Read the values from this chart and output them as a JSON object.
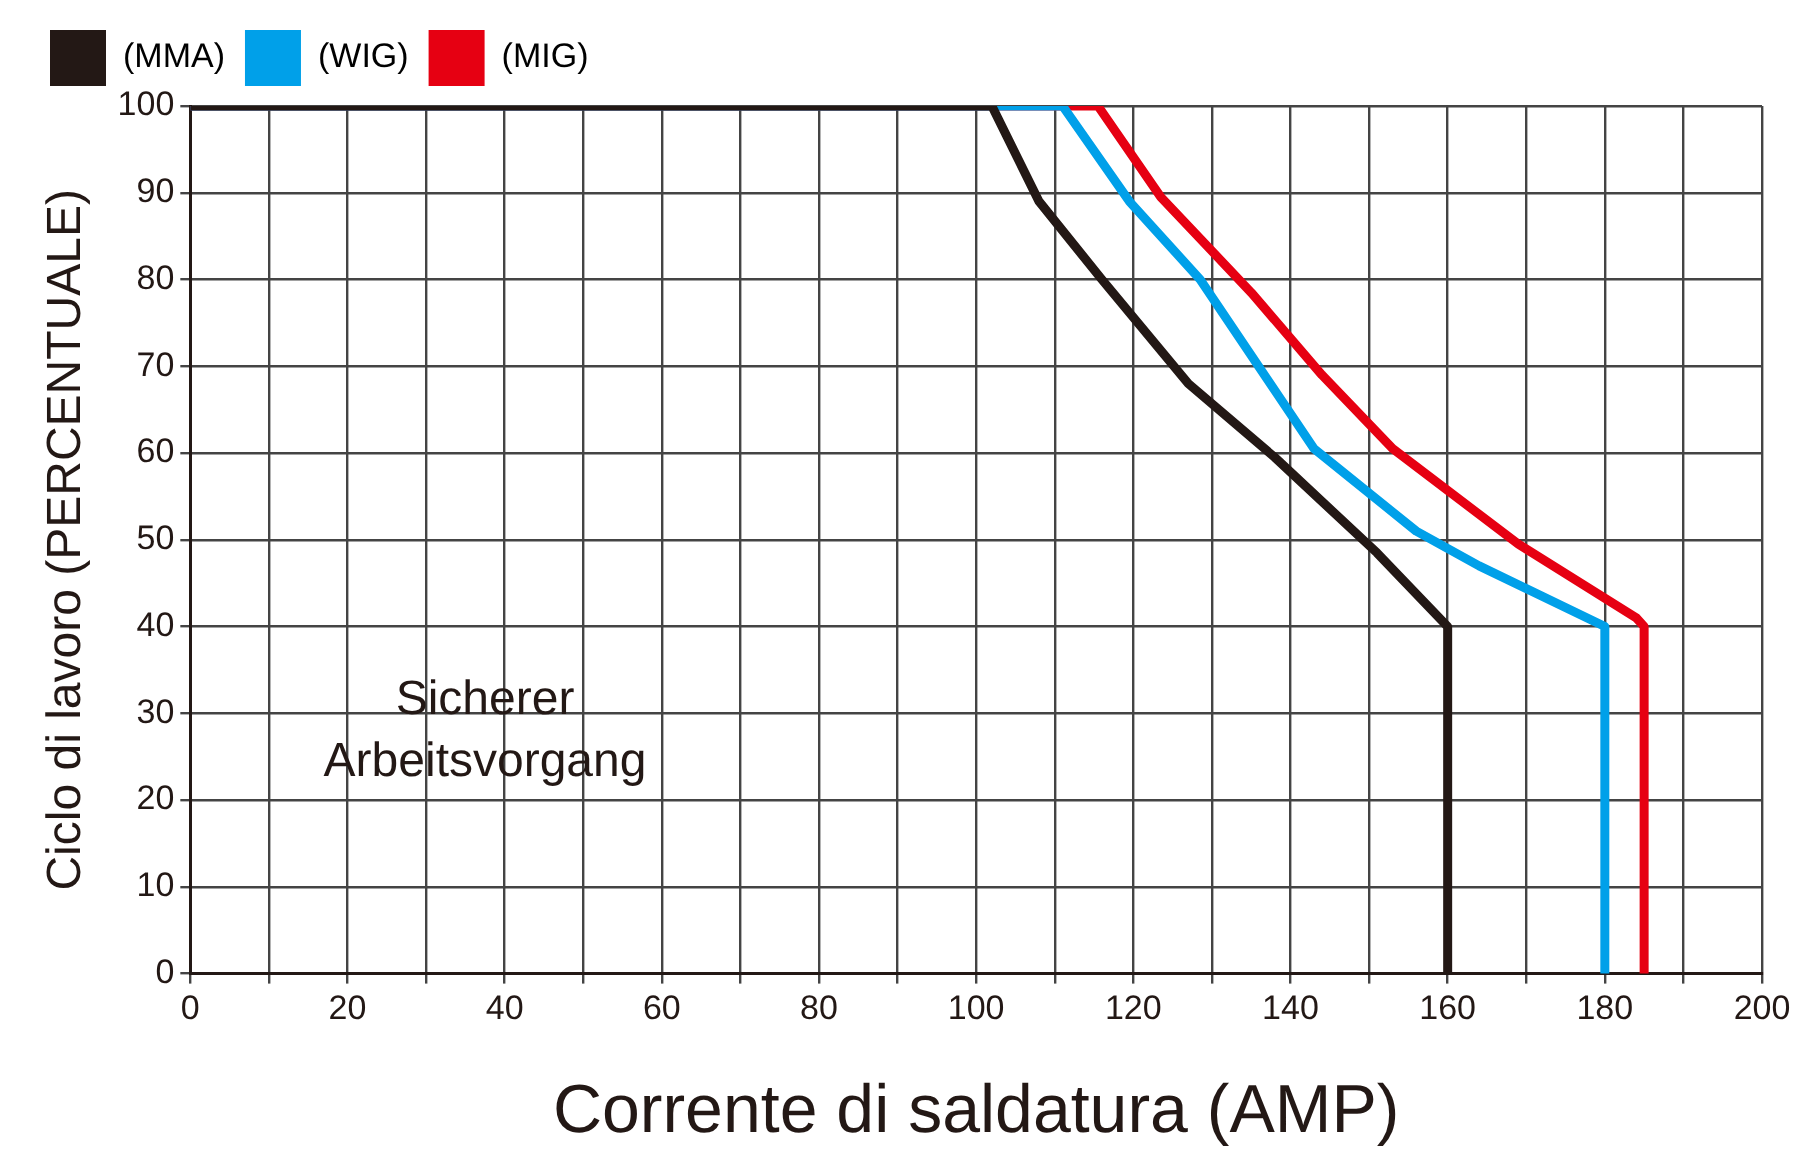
{
  "chart_data": {
    "type": "line",
    "xlabel": "Corrente di saldatura (AMP)",
    "ylabel": "Ciclo di lavoro (PERCENTUALE)",
    "xlim": [
      0,
      200
    ],
    "ylim": [
      0,
      100
    ],
    "xticks": [
      0,
      {
        "value": 10,
        "label": null
      },
      20,
      {
        "value": 30,
        "label": null
      },
      40,
      {
        "value": 50,
        "label": null
      },
      60,
      {
        "value": 70,
        "label": null
      },
      80,
      {
        "value": 90,
        "label": null
      },
      100,
      {
        "value": 110,
        "label": null
      },
      120,
      {
        "value": 130,
        "label": null
      },
      140,
      {
        "value": 150,
        "label": null
      },
      160,
      {
        "value": 170,
        "label": null
      },
      180,
      {
        "value": 190,
        "label": null
      },
      200
    ],
    "yticks": [
      0,
      10,
      20,
      30,
      40,
      50,
      60,
      70,
      80,
      90,
      100
    ],
    "grid": true,
    "legend": "top left",
    "marker": "none",
    "line_style": "solid",
    "annotations": [
      "Sicherer Arbeitsvorgang"
    ],
    "series": [
      {
        "name": "(MMA)",
        "color": "#231815",
        "x": [
          0,
          102,
          108,
          116,
          127,
          138,
          151,
          160,
          160
        ],
        "values": [
          100,
          100,
          89,
          80,
          68,
          59.5,
          48.5,
          40,
          0
        ]
      },
      {
        "name": "(WIG)",
        "color": "#00a0e9",
        "x": [
          0,
          111,
          119.5,
          128.5,
          143,
          156,
          164,
          180,
          180
        ],
        "values": [
          100,
          100,
          89,
          80,
          60.5,
          51,
          47,
          40,
          0
        ]
      },
      {
        "name": "(MIG)",
        "color": "#e60012",
        "x": [
          0,
          115.5,
          123.5,
          135,
          144,
          153,
          169,
          184,
          185,
          185
        ],
        "values": [
          100,
          100,
          89.5,
          78.5,
          69,
          60.5,
          49.5,
          41,
          40,
          0
        ]
      }
    ]
  }
}
